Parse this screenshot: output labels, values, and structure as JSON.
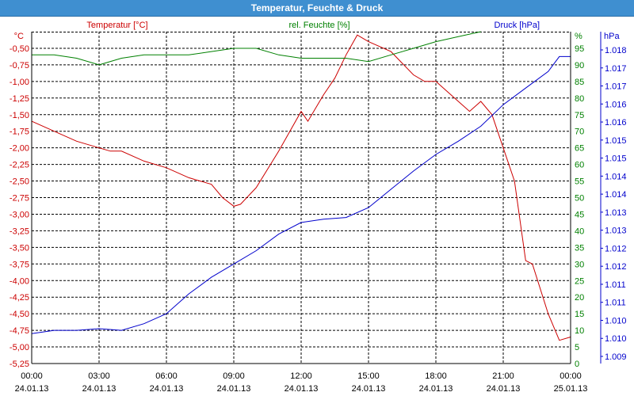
{
  "window": {
    "title": "Temperatur, Feuchte & Druck"
  },
  "chart_data": {
    "type": "line",
    "title": "Temperatur, Feuchte & Druck",
    "colors": {
      "temperature": "#cc0000",
      "humidity": "#008000",
      "pressure": "#0000cc",
      "grid": "#000000"
    },
    "grid": true,
    "x_ticks": [
      {
        "time": "00:00",
        "date": "24.01.13"
      },
      {
        "time": "03:00",
        "date": "24.01.13"
      },
      {
        "time": "06:00",
        "date": "24.01.13"
      },
      {
        "time": "09:00",
        "date": "24.01.13"
      },
      {
        "time": "12:00",
        "date": "24.01.13"
      },
      {
        "time": "15:00",
        "date": "24.01.13"
      },
      {
        "time": "18:00",
        "date": "24.01.13"
      },
      {
        "time": "21:00",
        "date": "24.01.13"
      },
      {
        "time": "00:00",
        "date": "25.01.13"
      }
    ],
    "axes": {
      "temperature": {
        "label": "Temperatur [°C]",
        "unit": "°C",
        "ylim": [
          -5.25,
          -0.25
        ],
        "ticks": [
          "-0,50",
          "-0,75",
          "-1,00",
          "-1,25",
          "-1,50",
          "-1,75",
          "-2,00",
          "-2,25",
          "-2,50",
          "-2,75",
          "-3,00",
          "-3,25",
          "-3,50",
          "-3,75",
          "-4,00",
          "-4,25",
          "-4,50",
          "-4,75",
          "-5,00",
          "-5,25"
        ]
      },
      "humidity": {
        "label": "rel. Feuchte [%]",
        "unit": "%",
        "ylim": [
          0,
          100
        ],
        "ticks": [
          "95",
          "90",
          "85",
          "80",
          "75",
          "70",
          "65",
          "60",
          "55",
          "50",
          "45",
          "40",
          "35",
          "30",
          "25",
          "20",
          "15",
          "10",
          "5",
          "0"
        ]
      },
      "pressure": {
        "label": "Druck [hPa]",
        "unit": "hPa",
        "ylim": [
          1008.7,
          1018.7
        ],
        "ticks": [
          "1.018",
          "1.017",
          "1.017",
          "1.016",
          "1.016",
          "1.015",
          "1.015",
          "1.014",
          "1.014",
          "1.013",
          "1.013",
          "1.012",
          "1.012",
          "1.011",
          "1.011",
          "1.010",
          "1.010",
          "1.009"
        ]
      }
    },
    "series": [
      {
        "name": "Temperatur [°C]",
        "axis": "temperature",
        "color": "#cc0000",
        "points": [
          [
            0,
            -1.6
          ],
          [
            1,
            -1.75
          ],
          [
            2,
            -1.9
          ],
          [
            3,
            -2.0
          ],
          [
            3.5,
            -2.05
          ],
          [
            4,
            -2.05
          ],
          [
            5,
            -2.2
          ],
          [
            6,
            -2.3
          ],
          [
            7,
            -2.45
          ],
          [
            7.5,
            -2.5
          ],
          [
            8,
            -2.55
          ],
          [
            8.5,
            -2.75
          ],
          [
            9,
            -2.88
          ],
          [
            9.3,
            -2.85
          ],
          [
            10,
            -2.6
          ],
          [
            11,
            -2.05
          ],
          [
            12,
            -1.45
          ],
          [
            12.3,
            -1.6
          ],
          [
            13,
            -1.2
          ],
          [
            13.5,
            -0.95
          ],
          [
            14,
            -0.6
          ],
          [
            14.5,
            -0.3
          ],
          [
            15,
            -0.4
          ],
          [
            16,
            -0.55
          ],
          [
            17,
            -0.9
          ],
          [
            17.5,
            -1.0
          ],
          [
            18,
            -1.0
          ],
          [
            19,
            -1.3
          ],
          [
            19.5,
            -1.45
          ],
          [
            20,
            -1.3
          ],
          [
            20.5,
            -1.5
          ],
          [
            21,
            -2.0
          ],
          [
            21.5,
            -2.5
          ],
          [
            22,
            -3.7
          ],
          [
            22.3,
            -3.75
          ],
          [
            23,
            -4.5
          ],
          [
            23.5,
            -4.9
          ],
          [
            24,
            -4.85
          ]
        ]
      },
      {
        "name": "rel. Feuchte [%]",
        "axis": "humidity",
        "color": "#008000",
        "points": [
          [
            0,
            93
          ],
          [
            1,
            93
          ],
          [
            2,
            92
          ],
          [
            3,
            90
          ],
          [
            4,
            92
          ],
          [
            5,
            93
          ],
          [
            6,
            93
          ],
          [
            7,
            93
          ],
          [
            8,
            94
          ],
          [
            9,
            95
          ],
          [
            10,
            95
          ],
          [
            11,
            93
          ],
          [
            12,
            92
          ],
          [
            13,
            92
          ],
          [
            14,
            92
          ],
          [
            15,
            91
          ],
          [
            16,
            93
          ],
          [
            17,
            95
          ],
          [
            18,
            97
          ],
          [
            19,
            98.5
          ],
          [
            20,
            100
          ]
        ]
      },
      {
        "name": "Druck [hPa]",
        "axis": "pressure",
        "color": "#0000cc",
        "points": [
          [
            0,
            1009.6
          ],
          [
            1,
            1009.7
          ],
          [
            2,
            1009.7
          ],
          [
            3,
            1009.75
          ],
          [
            4,
            1009.7
          ],
          [
            5,
            1009.9
          ],
          [
            6,
            1010.2
          ],
          [
            7,
            1010.8
          ],
          [
            8,
            1011.3
          ],
          [
            9,
            1011.7
          ],
          [
            10,
            1012.1
          ],
          [
            11,
            1012.6
          ],
          [
            12,
            1012.95
          ],
          [
            13,
            1013.05
          ],
          [
            14,
            1013.1
          ],
          [
            15,
            1013.4
          ],
          [
            16,
            1013.95
          ],
          [
            17,
            1014.5
          ],
          [
            18,
            1015.0
          ],
          [
            19,
            1015.4
          ],
          [
            20,
            1015.85
          ],
          [
            21,
            1016.5
          ],
          [
            22,
            1017.0
          ],
          [
            23,
            1017.5
          ],
          [
            23.5,
            1017.95
          ],
          [
            24,
            1017.95
          ]
        ]
      }
    ]
  }
}
